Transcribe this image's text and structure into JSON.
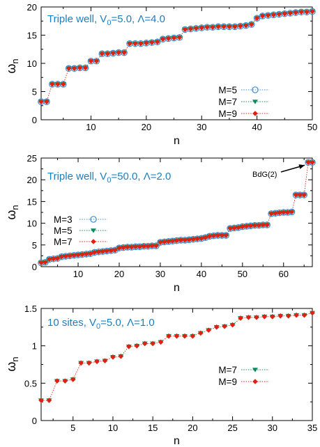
{
  "chart_data": [
    {
      "type": "scatter",
      "title": "Triple well, V0=5.0, Λ=4.0",
      "xlabel": "n",
      "ylabel": "ωn",
      "xlim": [
        1,
        50
      ],
      "ylim": [
        0,
        20
      ],
      "xticks": [
        10,
        20,
        30,
        40,
        50
      ],
      "yticks": [
        0,
        5,
        10,
        15,
        20
      ],
      "legend_position": "right",
      "colors": {
        "title": "#1a7fc0",
        "M5": "#3a8fd0",
        "M7": "#0e8a5f",
        "M9": "#dd2211",
        "line": "#dd2211"
      },
      "series": [
        {
          "name": "M=5",
          "marker": "circle-open",
          "values": [
            3.2,
            3.2,
            6.3,
            6.3,
            6.3,
            9.1,
            9.1,
            9.2,
            9.2,
            10.4,
            10.4,
            11.7,
            11.7,
            11.8,
            11.9,
            11.9,
            13.5,
            13.5,
            13.5,
            13.6,
            13.7,
            13.8,
            14.3,
            14.4,
            14.5,
            14.6,
            16.0,
            16.1,
            16.2,
            16.3,
            16.4,
            16.4,
            16.5,
            16.5,
            16.5,
            16.5,
            16.6,
            16.7,
            16.9,
            18.0,
            18.4,
            18.5,
            18.6,
            18.7,
            18.8,
            18.9,
            19.0,
            19.1,
            19.1,
            19.2
          ]
        },
        {
          "name": "M=7",
          "marker": "triangle-down",
          "values": [
            3.2,
            3.2,
            6.3,
            6.3,
            6.3,
            9.1,
            9.1,
            9.2,
            9.2,
            10.4,
            10.4,
            11.7,
            11.7,
            11.8,
            11.9,
            11.9,
            13.5,
            13.5,
            13.5,
            13.6,
            13.7,
            13.8,
            14.3,
            14.4,
            14.5,
            14.6,
            16.0,
            16.1,
            16.2,
            16.3,
            16.4,
            16.4,
            16.5,
            16.5,
            16.5,
            16.5,
            16.6,
            16.7,
            16.9,
            18.0,
            18.4,
            18.5,
            18.6,
            18.7,
            18.8,
            18.9,
            19.0,
            19.1,
            19.1,
            19.2
          ]
        },
        {
          "name": "M=9",
          "marker": "diamond",
          "values": [
            3.2,
            3.2,
            6.3,
            6.3,
            6.3,
            9.1,
            9.1,
            9.2,
            9.2,
            10.4,
            10.4,
            11.7,
            11.7,
            11.8,
            11.9,
            11.9,
            13.5,
            13.5,
            13.5,
            13.6,
            13.7,
            13.8,
            14.3,
            14.4,
            14.5,
            14.6,
            16.0,
            16.1,
            16.2,
            16.3,
            16.4,
            16.4,
            16.5,
            16.5,
            16.5,
            16.5,
            16.6,
            16.7,
            16.9,
            18.0,
            18.4,
            18.5,
            18.6,
            18.7,
            18.8,
            18.9,
            19.0,
            19.1,
            19.1,
            19.2
          ]
        }
      ]
    },
    {
      "type": "scatter",
      "title": "Triple well, V0=50.0, Λ=2.0",
      "xlabel": "n",
      "ylabel": "ωn",
      "xlim": [
        1,
        67
      ],
      "ylim": [
        0,
        25
      ],
      "xticks": [
        10,
        20,
        30,
        40,
        50,
        60
      ],
      "yticks": [
        0,
        5,
        10,
        15,
        20,
        25
      ],
      "legend_position": "left",
      "annotation": {
        "text": "BdG(2)",
        "x": 66,
        "y": 24
      },
      "colors": {
        "title": "#1a7fc0",
        "M3": "#3a8fd0",
        "M5": "#0e8a5f",
        "M7": "#dd2211",
        "line": "#dd2211"
      },
      "series": [
        {
          "name": "M=3",
          "marker": "circle-open",
          "values": [
            0.9,
            1.0,
            1.7,
            1.8,
            1.9,
            2.3,
            2.4,
            2.5,
            2.6,
            2.7,
            2.8,
            2.9,
            3.0,
            3.3,
            3.4,
            3.5,
            3.6,
            3.7,
            3.8,
            4.3,
            4.4,
            4.5,
            4.5,
            4.6,
            4.6,
            4.7,
            4.7,
            4.8,
            4.8,
            5.6,
            5.7,
            5.8,
            5.9,
            6.0,
            6.1,
            6.1,
            6.2,
            6.3,
            6.4,
            6.5,
            6.7,
            7.0,
            7.1,
            7.2,
            7.2,
            7.2,
            8.8,
            8.9,
            9.0,
            9.2,
            9.3,
            9.4,
            9.5,
            9.5,
            9.6,
            9.6,
            12.2,
            12.3,
            12.4,
            12.5,
            12.5,
            12.6,
            16.5,
            16.5,
            16.5,
            24.0,
            24.0
          ]
        },
        {
          "name": "M=5",
          "marker": "triangle-down",
          "values": [
            0.9,
            1.0,
            1.7,
            1.8,
            1.9,
            2.3,
            2.4,
            2.5,
            2.6,
            2.7,
            2.8,
            2.9,
            3.0,
            3.3,
            3.4,
            3.5,
            3.6,
            3.7,
            3.8,
            4.3,
            4.4,
            4.5,
            4.5,
            4.6,
            4.6,
            4.7,
            4.7,
            4.8,
            4.8,
            5.6,
            5.7,
            5.8,
            5.9,
            6.0,
            6.1,
            6.1,
            6.2,
            6.3,
            6.4,
            6.5,
            6.7,
            7.0,
            7.1,
            7.2,
            7.2,
            7.2,
            8.8,
            8.9,
            9.0,
            9.2,
            9.3,
            9.4,
            9.5,
            9.5,
            9.6,
            9.6,
            12.2,
            12.3,
            12.4,
            12.5,
            12.5,
            12.6,
            16.5,
            16.5,
            16.5,
            24.0,
            24.0
          ]
        },
        {
          "name": "M=7",
          "marker": "diamond",
          "values": [
            0.9,
            1.0,
            1.7,
            1.8,
            1.9,
            2.3,
            2.4,
            2.5,
            2.6,
            2.7,
            2.8,
            2.9,
            3.0,
            3.3,
            3.4,
            3.5,
            3.6,
            3.7,
            3.8,
            4.3,
            4.4,
            4.5,
            4.5,
            4.6,
            4.6,
            4.7,
            4.7,
            4.8,
            4.8,
            5.6,
            5.7,
            5.8,
            5.9,
            6.0,
            6.1,
            6.1,
            6.2,
            6.3,
            6.4,
            6.5,
            6.7,
            7.0,
            7.1,
            7.2,
            7.2,
            7.2,
            8.8,
            8.9,
            9.0,
            9.2,
            9.3,
            9.4,
            9.5,
            9.5,
            9.6,
            9.6,
            12.2,
            12.3,
            12.4,
            12.5,
            12.5,
            12.6,
            16.5,
            16.5,
            16.5,
            24.0,
            24.0
          ]
        }
      ]
    },
    {
      "type": "scatter",
      "title": "10 sites, V0=5.0, Λ=1.0",
      "xlabel": "n",
      "ylabel": "ωn",
      "xlim": [
        1,
        35
      ],
      "ylim": [
        0,
        1.5
      ],
      "xticks": [
        5,
        10,
        15,
        20,
        25,
        30,
        35
      ],
      "yticks": [
        0,
        0.5,
        1,
        1.5
      ],
      "ytick_labels": [
        "0",
        "0.5",
        "1",
        "1.5"
      ],
      "legend_position": "right",
      "colors": {
        "title": "#1a7fc0",
        "M7": "#0e8a5f",
        "M9": "#dd2211",
        "line": "#dd2211"
      },
      "series": [
        {
          "name": "M=7",
          "marker": "triangle-down",
          "values": [
            0.27,
            0.27,
            0.53,
            0.53,
            0.55,
            0.77,
            0.77,
            0.79,
            0.8,
            0.85,
            0.86,
            0.99,
            1.0,
            1.03,
            1.03,
            1.05,
            1.13,
            1.13,
            1.13,
            1.13,
            1.17,
            1.21,
            1.25,
            1.26,
            1.28,
            1.37,
            1.38,
            1.38,
            1.39,
            1.39,
            1.4,
            1.4,
            1.41,
            1.41,
            1.44
          ]
        },
        {
          "name": "M=9",
          "marker": "diamond",
          "values": [
            0.27,
            0.27,
            0.53,
            0.53,
            0.55,
            0.77,
            0.77,
            0.79,
            0.8,
            0.85,
            0.86,
            0.99,
            1.0,
            1.03,
            1.03,
            1.05,
            1.13,
            1.13,
            1.13,
            1.13,
            1.17,
            1.21,
            1.25,
            1.26,
            1.28,
            1.37,
            1.38,
            1.38,
            1.39,
            1.39,
            1.4,
            1.4,
            1.41,
            1.41,
            1.44
          ]
        }
      ]
    }
  ]
}
